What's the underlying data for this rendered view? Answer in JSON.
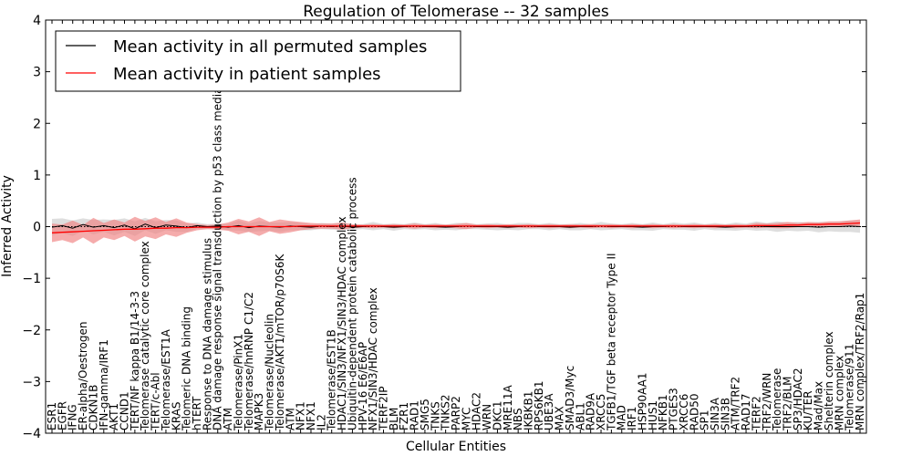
{
  "chart_data": {
    "type": "line",
    "title": "Regulation of Telomerase -- 32 samples",
    "xlabel": "Cellular Entities",
    "ylabel": "Inferred Activity",
    "ylim": [
      -4,
      4
    ],
    "yticks": [
      -4,
      -3,
      -2,
      -1,
      0,
      1,
      2,
      3,
      4
    ],
    "ytick_labels": [
      "−4",
      "−3",
      "−2",
      "−1",
      "0",
      "1",
      "2",
      "3",
      "4"
    ],
    "grid": false,
    "legend_position": "top-left",
    "colors": {
      "permuted": "#000000",
      "patient": "#ff0000",
      "patient_band": "#f08080",
      "permuted_band": "#c8c8c8"
    },
    "categories": [
      "ESR1",
      "EGFR",
      "IFNG",
      "ER-alpha/Oestrogen",
      "CDKN1B",
      "IFN-gamma/IRF1",
      "AKT1",
      "CCND1",
      "TERT/NF kappa B1/14-3-3",
      "Telomerase catalytic core complex",
      "TERT/c-Abl",
      "Telomerase/EST1A",
      "KRAS",
      "Telomeric DNA binding",
      "hTERT",
      "Response to DNA damage stimulus",
      "DNA damage response signal transduction by p53 class mediator",
      "ATM",
      "Telomerase/PinX1",
      "Telomerase/hnRNP C1/C2",
      "MAPK3",
      "Telomerase/Nucleolin",
      "Telomerase/AKT1/mTOR/p70S6K",
      "ATM",
      "NFX1",
      "NFX1",
      "IL2",
      "Telomerase/EST1B",
      "HDAC1/SIN3/NFX1/SIN3/HDAC complex",
      "Ubiquitin-dependent protein catabolic process",
      "HPV-16 E6/E6AP",
      "NFX1/SIN3/HDAC complex",
      "TERF2IP",
      "BLM",
      "FZR1",
      "RAD1",
      "SMG5",
      "TNKS",
      "TNKS2",
      "PARP2",
      "MYC",
      "HDAC2",
      "WRN",
      "DKC1",
      "MRE11A",
      "NBS",
      "IKBKB1",
      "RPS6KB1",
      "UBE3A",
      "MAX",
      "SMAD3/Myc",
      "ABL1",
      "RAD9A",
      "XRCC5",
      "TGFB1/TGF beta receptor Type II",
      "MAD",
      "IRF1",
      "HSP90AA1",
      "HUS1",
      "NFKB1",
      "PTGES3",
      "XRCC6",
      "RAD50",
      "SP1",
      "SIN3A",
      "SIN3B",
      "ATM/TRF2",
      "RAD17",
      "TERF2",
      "TRF2/WRN",
      "Telomerase",
      "TRF2/BLM",
      "SP3/HDAC2",
      "KU/TER",
      "Mad/Max",
      "Shelterin complex",
      "MRN complex",
      "Telomerase/911",
      "MRN complex/TRF2/Rap1"
    ],
    "series": [
      {
        "name": "Mean activity in all permuted samples",
        "color": "#000000",
        "values": [
          -0.01,
          0.02,
          -0.03,
          0.04,
          -0.01,
          0.02,
          -0.02,
          0.03,
          -0.04,
          0.05,
          -0.02,
          0.03,
          0.01,
          -0.02,
          0.02,
          0.0,
          0.01,
          -0.01,
          0.02,
          -0.02,
          0.01,
          0.0,
          -0.01,
          0.01,
          0.0,
          -0.01,
          0.01,
          0.0,
          0.01,
          -0.01,
          0.0,
          0.01,
          0.0,
          -0.01,
          0.0,
          0.01,
          0.0,
          0.0,
          -0.01,
          0.0,
          0.01,
          0.0,
          0.0,
          0.0,
          -0.01,
          0.0,
          0.01,
          0.0,
          0.0,
          0.0,
          -0.01,
          0.0,
          0.0,
          0.01,
          0.0,
          0.0,
          0.0,
          -0.01,
          0.0,
          0.0,
          0.01,
          0.0,
          0.0,
          0.0,
          0.0,
          -0.01,
          0.0,
          0.0,
          0.01,
          0.0,
          0.0,
          0.0,
          0.0,
          0.0,
          -0.01,
          0.0,
          0.0,
          0.01,
          0.0
        ]
      },
      {
        "name": "Mean activity in patient samples",
        "color": "#ff0000",
        "values": [
          -0.12,
          -0.11,
          -0.1,
          -0.09,
          -0.08,
          -0.07,
          -0.06,
          -0.05,
          -0.05,
          -0.04,
          -0.03,
          -0.03,
          -0.02,
          -0.02,
          -0.01,
          -0.01,
          -0.01,
          0.0,
          0.0,
          0.0,
          0.0,
          0.0,
          0.0,
          0.0,
          0.01,
          0.01,
          0.01,
          0.01,
          0.01,
          0.01,
          0.01,
          0.01,
          0.01,
          0.01,
          0.01,
          0.01,
          0.01,
          0.01,
          0.01,
          0.01,
          0.01,
          0.01,
          0.01,
          0.01,
          0.01,
          0.01,
          0.01,
          0.01,
          0.01,
          0.01,
          0.01,
          0.01,
          0.01,
          0.01,
          0.01,
          0.01,
          0.01,
          0.01,
          0.01,
          0.01,
          0.01,
          0.01,
          0.01,
          0.01,
          0.01,
          0.01,
          0.01,
          0.01,
          0.02,
          0.02,
          0.02,
          0.03,
          0.03,
          0.04,
          0.04,
          0.05,
          0.05,
          0.06,
          0.07
        ]
      }
    ],
    "patient_band_halfwidth": [
      0.18,
      0.15,
      0.22,
      0.12,
      0.25,
      0.14,
      0.2,
      0.13,
      0.24,
      0.15,
      0.21,
      0.12,
      0.18,
      0.1,
      0.06,
      0.04,
      0.05,
      0.08,
      0.15,
      0.1,
      0.18,
      0.09,
      0.14,
      0.11,
      0.08,
      0.06,
      0.05,
      0.05,
      0.07,
      0.04,
      0.03,
      0.04,
      0.03,
      0.04,
      0.03,
      0.05,
      0.03,
      0.04,
      0.03,
      0.04,
      0.06,
      0.03,
      0.04,
      0.03,
      0.04,
      0.03,
      0.04,
      0.03,
      0.04,
      0.03,
      0.04,
      0.03,
      0.04,
      0.03,
      0.04,
      0.03,
      0.04,
      0.03,
      0.04,
      0.03,
      0.04,
      0.03,
      0.04,
      0.03,
      0.04,
      0.03,
      0.04,
      0.03,
      0.05,
      0.04,
      0.05,
      0.06,
      0.04,
      0.05,
      0.04,
      0.05,
      0.05,
      0.06,
      0.07
    ],
    "permuted_band_halfwidth": [
      0.16,
      0.14,
      0.15,
      0.12,
      0.14,
      0.12,
      0.15,
      0.13,
      0.14,
      0.12,
      0.12,
      0.1,
      0.11,
      0.08,
      0.06,
      0.05,
      0.05,
      0.06,
      0.1,
      0.08,
      0.1,
      0.08,
      0.09,
      0.08,
      0.07,
      0.06,
      0.06,
      0.06,
      0.07,
      0.05,
      0.05,
      0.08,
      0.05,
      0.07,
      0.05,
      0.07,
      0.05,
      0.07,
      0.05,
      0.07,
      0.06,
      0.05,
      0.06,
      0.07,
      0.05,
      0.07,
      0.06,
      0.05,
      0.07,
      0.05,
      0.06,
      0.07,
      0.05,
      0.08,
      0.06,
      0.05,
      0.07,
      0.06,
      0.08,
      0.05,
      0.07,
      0.06,
      0.08,
      0.05,
      0.07,
      0.06,
      0.08,
      0.06,
      0.09,
      0.07,
      0.1,
      0.08,
      0.09,
      0.08,
      0.1,
      0.09,
      0.1,
      0.11,
      0.12
    ]
  }
}
